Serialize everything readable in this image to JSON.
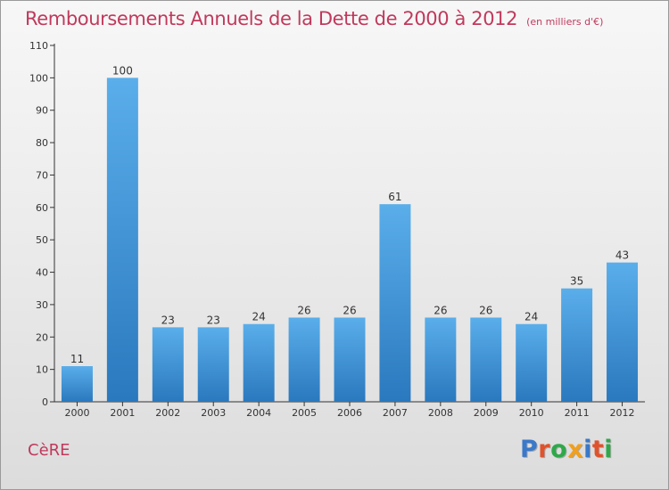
{
  "title": "Remboursements Annuels de la Dette de 2000 à 2012",
  "unit": "(en milliers d'€)",
  "place": "CèRE",
  "logo": {
    "text": "Proxiti",
    "colors": [
      "#3a78c9",
      "#e0522c",
      "#2fa84a",
      "#f0a01e",
      "#3a78c9",
      "#e0522c",
      "#2fa84a"
    ]
  },
  "colors": {
    "bar_top": "#5aaeea",
    "bar_bottom": "#2a78be",
    "title": "#c0395c"
  },
  "chart_data": {
    "type": "bar",
    "categories": [
      "2000",
      "2001",
      "2002",
      "2003",
      "2004",
      "2005",
      "2006",
      "2007",
      "2008",
      "2009",
      "2010",
      "2011",
      "2012"
    ],
    "values": [
      11,
      100,
      23,
      23,
      24,
      26,
      26,
      61,
      26,
      26,
      24,
      35,
      43
    ],
    "data_labels": [
      "11",
      "100",
      "23",
      "23",
      "24",
      "26",
      "26",
      "61",
      "26",
      "26",
      "24",
      "35",
      "43"
    ],
    "yticks": [
      0,
      10,
      20,
      30,
      40,
      50,
      60,
      70,
      80,
      90,
      100,
      110
    ],
    "ylim": [
      0,
      110
    ],
    "grid": false
  }
}
